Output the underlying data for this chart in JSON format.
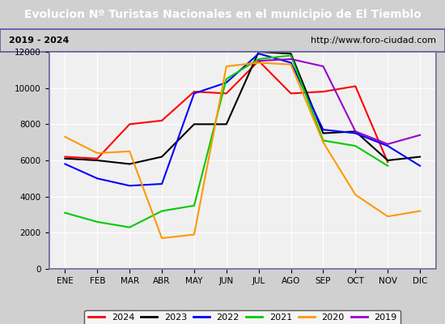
{
  "title": "Evolucion Nº Turistas Nacionales en el municipio de El Tiemblo",
  "subtitle_left": "2019 - 2024",
  "subtitle_right": "http://www.foro-ciudad.com",
  "months": [
    "ENE",
    "FEB",
    "MAR",
    "ABR",
    "MAY",
    "JUN",
    "JUL",
    "AGO",
    "SEP",
    "OCT",
    "NOV",
    "DIC"
  ],
  "series": {
    "2024": [
      6200,
      6100,
      8000,
      8200,
      9800,
      9700,
      11500,
      9700,
      9800,
      10100,
      5900,
      null
    ],
    "2023": [
      6100,
      6000,
      5800,
      6200,
      8000,
      8000,
      12000,
      11900,
      7500,
      7600,
      6000,
      6200
    ],
    "2022": [
      5800,
      5000,
      4600,
      4700,
      9700,
      10300,
      11900,
      11400,
      7700,
      7500,
      6800,
      5700
    ],
    "2021": [
      3100,
      2600,
      2300,
      3200,
      3500,
      10500,
      11600,
      11800,
      7100,
      6800,
      5700,
      null
    ],
    "2020": [
      7300,
      6400,
      6500,
      1700,
      1900,
      11200,
      11400,
      11300,
      7000,
      4100,
      2900,
      3200
    ],
    "2019": [
      null,
      null,
      null,
      null,
      null,
      null,
      11500,
      11600,
      11200,
      7600,
      6900,
      7400
    ]
  },
  "colors": {
    "2024": "#ff0000",
    "2023": "#000000",
    "2022": "#0000ff",
    "2021": "#00cc00",
    "2020": "#ff9900",
    "2019": "#9900cc"
  },
  "ylim": [
    0,
    12000
  ],
  "yticks": [
    0,
    2000,
    4000,
    6000,
    8000,
    10000,
    12000
  ],
  "title_bg": "#4472c4",
  "title_color": "#ffffff",
  "outer_bg": "#d0d0d0",
  "inner_bg": "#e8e8e8",
  "axes_bg": "#f0f0f0",
  "grid_color": "#ffffff",
  "title_fontsize": 10,
  "subtitle_fontsize": 8,
  "tick_fontsize": 7.5,
  "legend_fontsize": 8
}
